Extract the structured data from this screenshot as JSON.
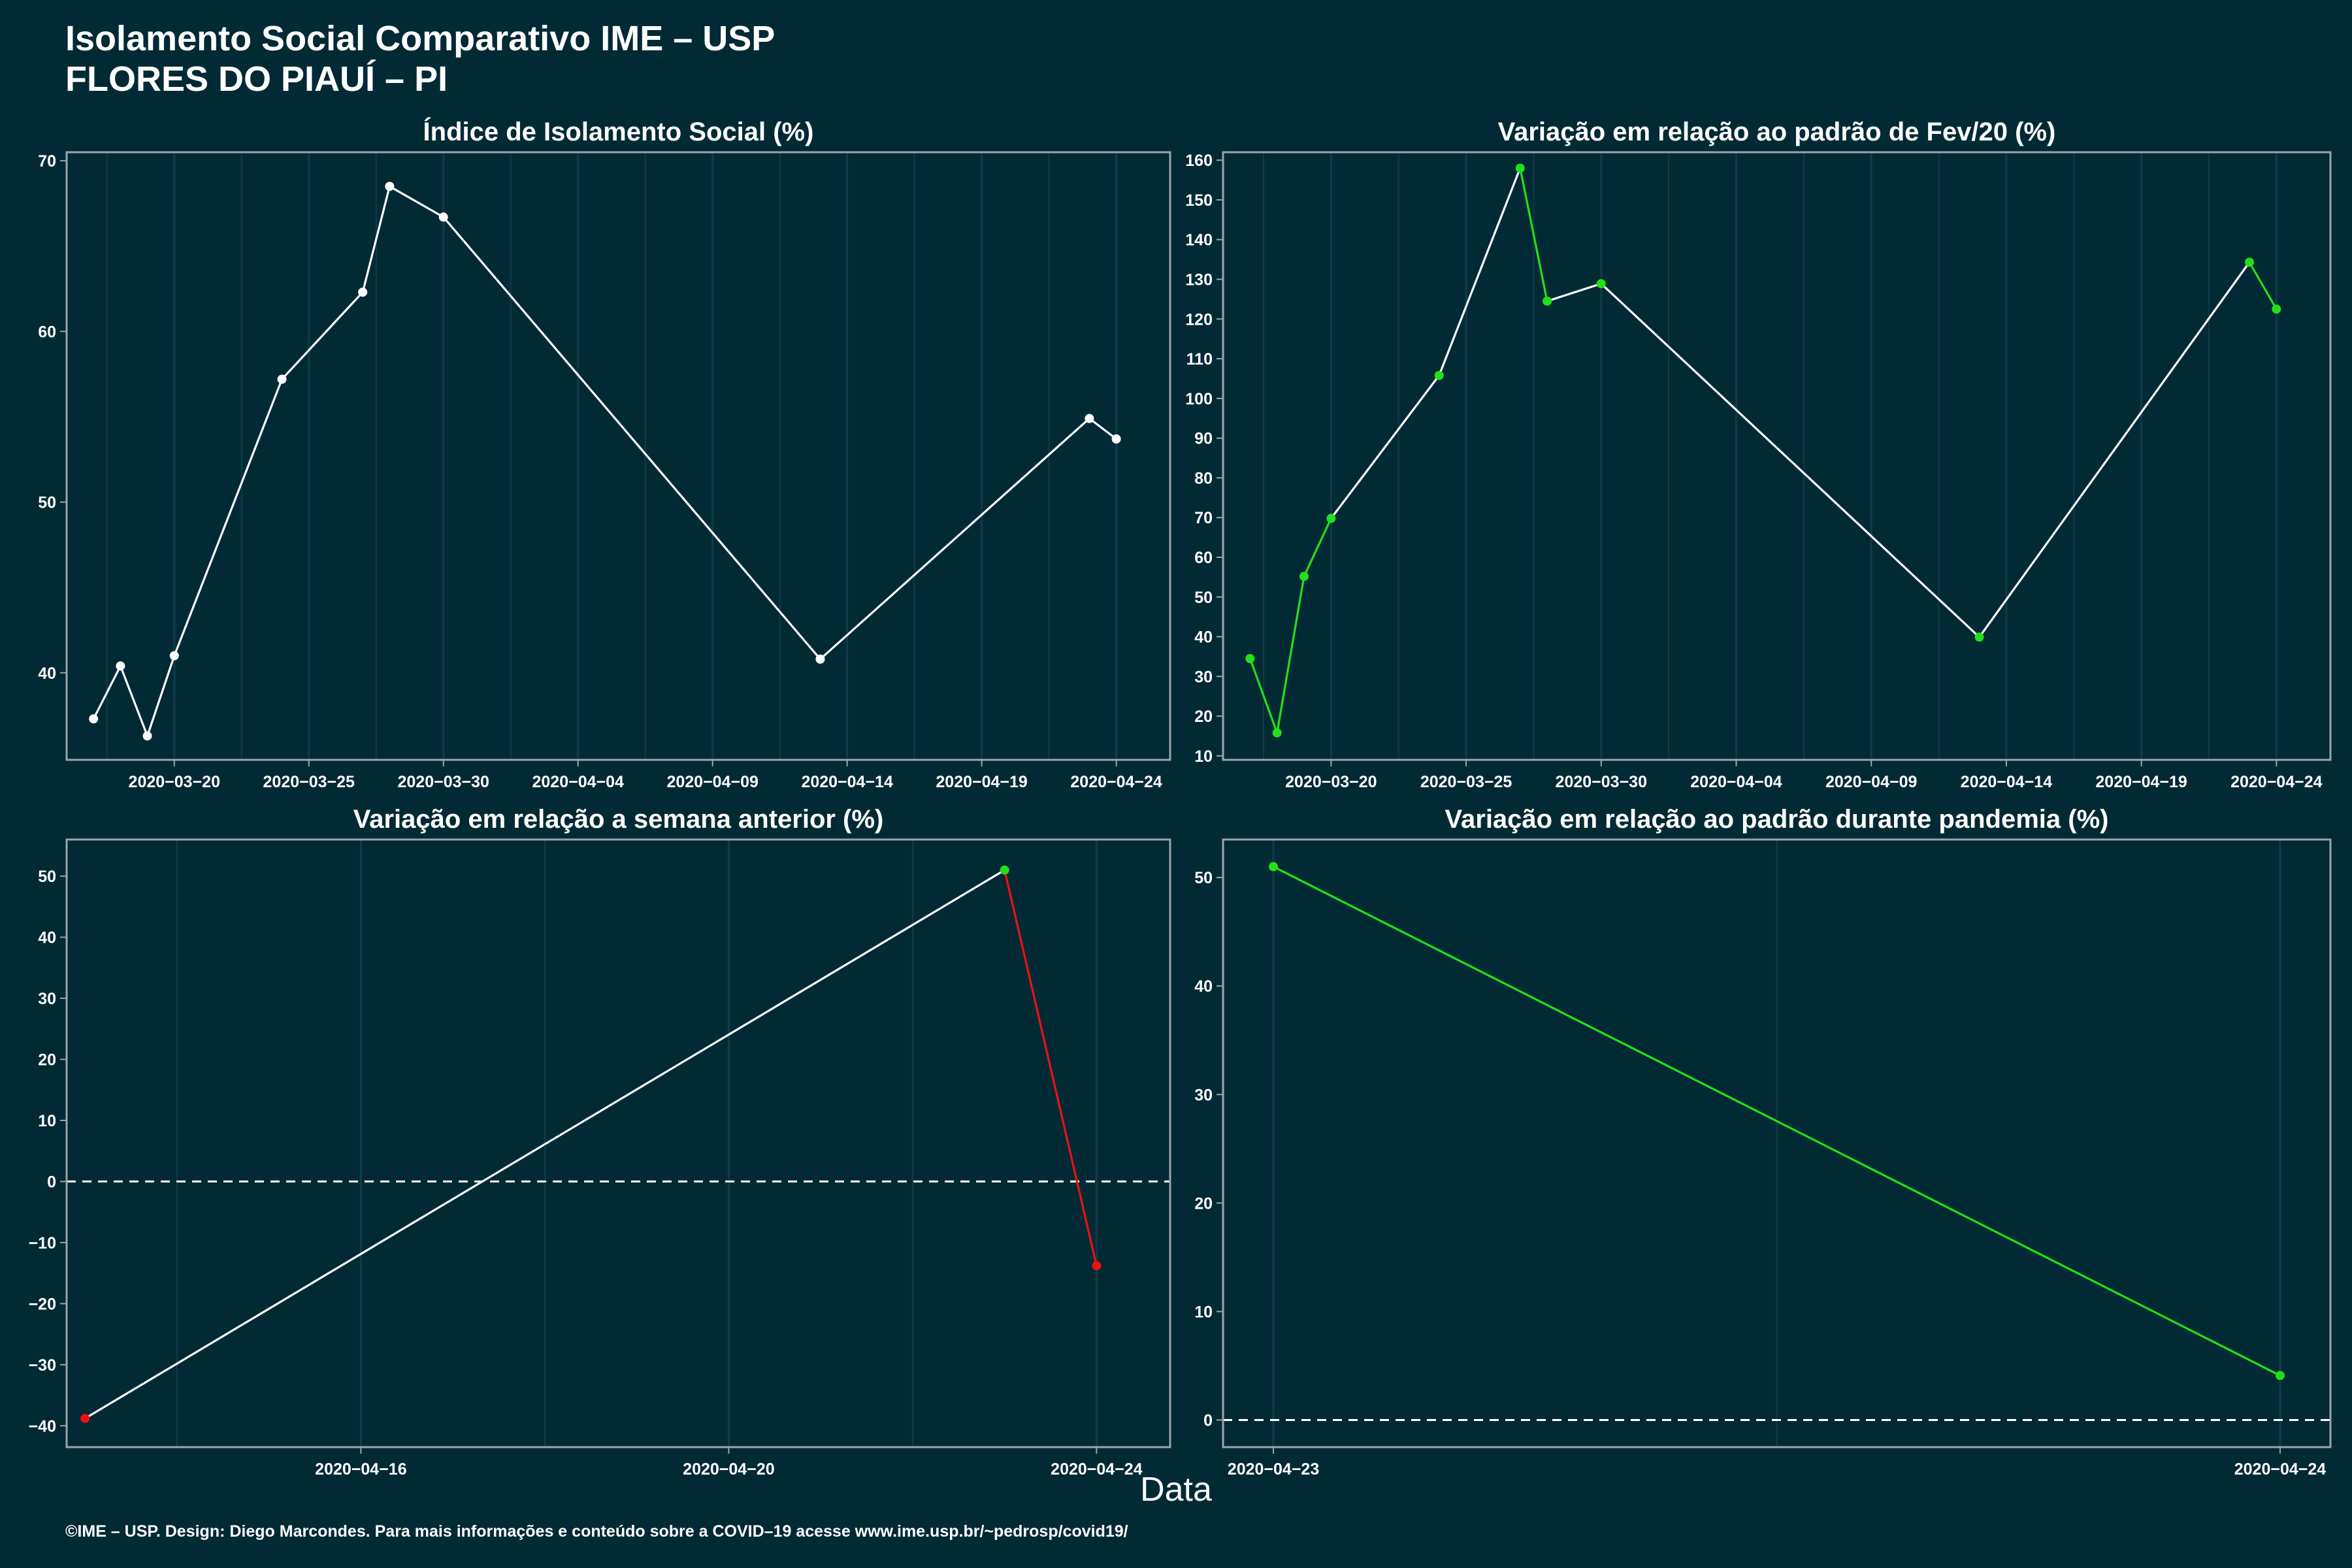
{
  "header": {
    "title_line1": "Isolamento Social Comparativo IME – USP",
    "title_line2": "FLORES DO PIAUÍ – PI"
  },
  "x_caption": "Data",
  "footer": "©IME – USP. Design: Diego Marcondes. Para mais informações e conteúdo sobre a COVID–19 acesse www.ime.usp.br/~pedrosp/covid19/",
  "colors": {
    "background": "#022a35",
    "panel": "#022a35",
    "line": "#ffffff",
    "increase": "#22e01a",
    "decrease": "#ee1111",
    "grid": "#0e3c48",
    "axis": "#9aa6ab"
  },
  "chart_data": [
    {
      "id": "isolamento",
      "type": "line",
      "title": "Índice de Isolamento Social (%)",
      "x_range": [
        "2020-03-16",
        "2020-04-26"
      ],
      "xticks": [
        "2020-03-20",
        "2020-03-25",
        "2020-03-30",
        "2020-04-04",
        "2020-04-09",
        "2020-04-14",
        "2020-04-19",
        "2020-04-24"
      ],
      "ylim": [
        34.9,
        70.5
      ],
      "yticks": [
        40,
        50,
        60,
        70
      ],
      "line_color": "white",
      "points": [
        {
          "x": "2020-03-17",
          "y": 37.3,
          "c": "white"
        },
        {
          "x": "2020-03-18",
          "y": 40.4,
          "c": "white"
        },
        {
          "x": "2020-03-19",
          "y": 36.3,
          "c": "white"
        },
        {
          "x": "2020-03-20",
          "y": 41.0,
          "c": "white"
        },
        {
          "x": "2020-03-24",
          "y": 57.2,
          "c": "white"
        },
        {
          "x": "2020-03-27",
          "y": 62.3,
          "c": "white"
        },
        {
          "x": "2020-03-28",
          "y": 68.5,
          "c": "white"
        },
        {
          "x": "2020-03-30",
          "y": 66.7,
          "c": "white"
        },
        {
          "x": "2020-04-13",
          "y": 40.8,
          "c": "white"
        },
        {
          "x": "2020-04-23",
          "y": 54.9,
          "c": "white"
        },
        {
          "x": "2020-04-24",
          "y": 53.7,
          "c": "white"
        }
      ]
    },
    {
      "id": "fev20",
      "type": "line",
      "title": "Variação em relação ao padrão de Fev/20 (%)",
      "x_range": [
        "2020-03-16",
        "2020-04-26"
      ],
      "xticks": [
        "2020-03-20",
        "2020-03-25",
        "2020-03-30",
        "2020-04-04",
        "2020-04-09",
        "2020-04-14",
        "2020-04-19",
        "2020-04-24"
      ],
      "ylim": [
        9,
        162
      ],
      "yticks": [
        10,
        20,
        30,
        40,
        50,
        60,
        70,
        80,
        90,
        100,
        110,
        120,
        130,
        140,
        150,
        160
      ],
      "line_color": "segment",
      "points": [
        {
          "x": "2020-03-17",
          "y": 34.5,
          "c": "green"
        },
        {
          "x": "2020-03-18",
          "y": 15.8,
          "c": "green"
        },
        {
          "x": "2020-03-19",
          "y": 55.2,
          "c": "green"
        },
        {
          "x": "2020-03-20",
          "y": 69.8,
          "c": "green"
        },
        {
          "x": "2020-03-24",
          "y": 105.8,
          "c": "green"
        },
        {
          "x": "2020-03-27",
          "y": 158.0,
          "c": "green"
        },
        {
          "x": "2020-03-28",
          "y": 124.5,
          "c": "green"
        },
        {
          "x": "2020-03-30",
          "y": 128.9,
          "c": "green"
        },
        {
          "x": "2020-04-13",
          "y": 39.9,
          "c": "green"
        },
        {
          "x": "2020-04-23",
          "y": 134.3,
          "c": "green"
        },
        {
          "x": "2020-04-24",
          "y": 122.5,
          "c": "green"
        }
      ]
    },
    {
      "id": "semana",
      "type": "line",
      "title": "Variação em relação a semana anterior (%)",
      "x_range": [
        "2020-04-12.8",
        "2020-04-24.8"
      ],
      "xticks": [
        "2020-04-16",
        "2020-04-20",
        "2020-04-24"
      ],
      "minor_xticks": [
        "2020-04-14",
        "2020-04-18",
        "2020-04-22"
      ],
      "ylim": [
        -43.5,
        56
      ],
      "yticks": [
        -40,
        -30,
        -20,
        -10,
        0,
        10,
        20,
        30,
        40,
        50
      ],
      "zero_line": true,
      "line_color": "segment",
      "points": [
        {
          "x": "2020-04-13",
          "y": -38.8,
          "c": "red"
        },
        {
          "x": "2020-04-23",
          "y": 51.0,
          "c": "green"
        },
        {
          "x": "2020-04-24",
          "y": -13.8,
          "c": "red"
        }
      ]
    },
    {
      "id": "pandemia",
      "type": "line",
      "title": "Variação em relação ao padrão durante pandemia (%)",
      "x_range": [
        "2020-04-22.95",
        "2020-04-24.05"
      ],
      "xticks": [
        "2020-04-23",
        "2020-04-24"
      ],
      "minor_xticks": [
        "2020-04-23.5"
      ],
      "ylim": [
        -2.5,
        53.5
      ],
      "yticks": [
        0,
        10,
        20,
        30,
        40,
        50
      ],
      "zero_line": true,
      "line_color": "green",
      "points": [
        {
          "x": "2020-04-23",
          "y": 51.0,
          "c": "green"
        },
        {
          "x": "2020-04-24",
          "y": 4.1,
          "c": "green"
        }
      ]
    }
  ]
}
